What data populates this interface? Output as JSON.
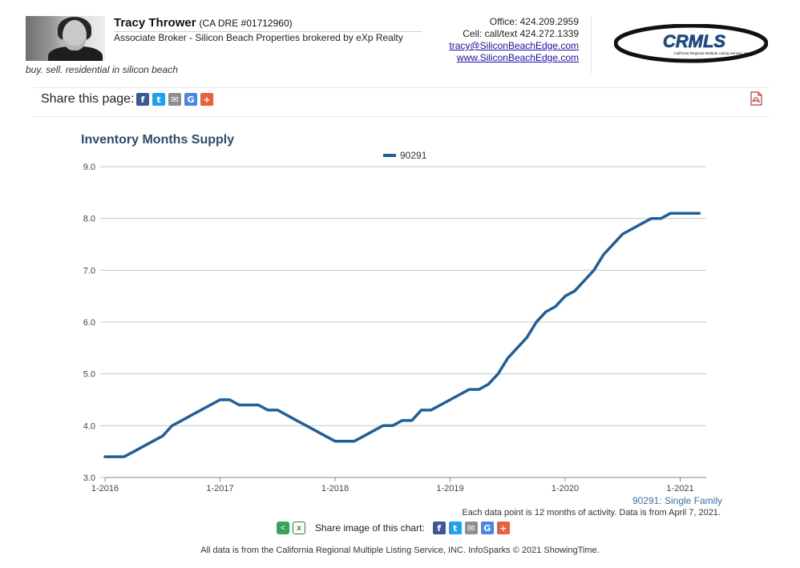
{
  "header": {
    "agent_name": "Tracy Thrower",
    "agent_dre": "(CA DRE #01712960)",
    "agent_title": "Associate Broker - Silicon Beach Properties brokered by eXp Realty",
    "tagline": "buy. sell. residential in silicon beach",
    "office": "Office: 424.209.2959",
    "cell": "Cell: call/text 424.272.1339",
    "email": "tracy@SiliconBeachEdge.com",
    "website": "www.SiliconBeachEdge.com",
    "logo_text": "CRMLS",
    "logo_subtext": "California Regional Multiple Listing Service, Inc."
  },
  "share": {
    "label": "Share this page:",
    "icons": [
      "facebook-icon",
      "twitter-icon",
      "email-icon",
      "google-icon",
      "plus-icon"
    ]
  },
  "colors": {
    "series": "#1f5f99",
    "title": "#2c4a6b",
    "grid": "#c8c8c8"
  },
  "chart_data": {
    "type": "line",
    "title": "Inventory Months Supply",
    "legend_position": "top-center",
    "grid": true,
    "ylim": [
      3.0,
      9.0
    ],
    "y_ticks": [
      "3.0",
      "4.0",
      "5.0",
      "6.0",
      "7.0",
      "8.0",
      "9.0"
    ],
    "x_ticks": [
      "1-2016",
      "1-2017",
      "1-2018",
      "1-2019",
      "1-2020",
      "1-2021"
    ],
    "series": [
      {
        "name": "90291",
        "x": [
          "1-2016",
          "2-2016",
          "3-2016",
          "4-2016",
          "5-2016",
          "6-2016",
          "7-2016",
          "8-2016",
          "9-2016",
          "10-2016",
          "11-2016",
          "12-2016",
          "1-2017",
          "2-2017",
          "3-2017",
          "4-2017",
          "5-2017",
          "6-2017",
          "7-2017",
          "8-2017",
          "9-2017",
          "10-2017",
          "11-2017",
          "12-2017",
          "1-2018",
          "2-2018",
          "3-2018",
          "4-2018",
          "5-2018",
          "6-2018",
          "7-2018",
          "8-2018",
          "9-2018",
          "10-2018",
          "11-2018",
          "12-2018",
          "1-2019",
          "2-2019",
          "3-2019",
          "4-2019",
          "5-2019",
          "6-2019",
          "7-2019",
          "8-2019",
          "9-2019",
          "10-2019",
          "11-2019",
          "12-2019",
          "1-2020",
          "2-2020",
          "3-2020",
          "4-2020",
          "5-2020",
          "6-2020",
          "7-2020",
          "8-2020",
          "9-2020",
          "10-2020",
          "11-2020",
          "12-2020",
          "1-2021",
          "2-2021",
          "3-2021"
        ],
        "values": [
          3.4,
          3.4,
          3.4,
          3.5,
          3.6,
          3.7,
          3.8,
          4.0,
          4.1,
          4.2,
          4.3,
          4.4,
          4.5,
          4.5,
          4.4,
          4.4,
          4.4,
          4.3,
          4.3,
          4.2,
          4.1,
          4.0,
          3.9,
          3.8,
          3.7,
          3.7,
          3.7,
          3.8,
          3.9,
          4.0,
          4.0,
          4.1,
          4.1,
          4.3,
          4.3,
          4.4,
          4.5,
          4.6,
          4.7,
          4.7,
          4.8,
          5.0,
          5.3,
          5.5,
          5.7,
          6.0,
          6.2,
          6.3,
          6.5,
          6.6,
          6.8,
          7.0,
          7.3,
          7.5,
          7.7,
          7.8,
          7.9,
          8.0,
          8.0,
          8.1,
          8.1,
          8.1,
          8.1
        ]
      }
    ]
  },
  "footer": {
    "series_note": "90291: Single Family",
    "data_note": "Each data point is 12 months of activity. Data is from April 7, 2021.",
    "share_chart_label": "Share image of this chart:",
    "copyright": "All data is from the California Regional Multiple Listing Service, INC. InfoSparks © 2021 ShowingTime."
  }
}
